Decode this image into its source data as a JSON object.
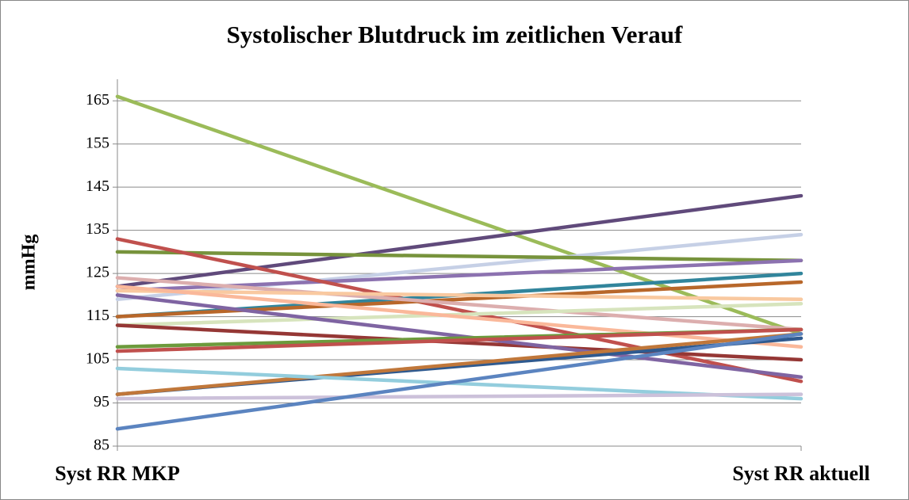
{
  "chart_data": {
    "type": "line",
    "title": "Systolischer Blutdruck im zeitlichen Verauf",
    "y_label": "mmHg",
    "categories": [
      "Syst RR MKP",
      "Syst RR aktuell"
    ],
    "ylim": [
      85,
      170
    ],
    "yticks": [
      85,
      95,
      105,
      115,
      125,
      135,
      145,
      155,
      165
    ],
    "grid": true,
    "series": [
      {
        "color": "#9bbb59",
        "values": [
          166,
          111
        ]
      },
      {
        "color": "#604a7b",
        "values": [
          122,
          143
        ]
      },
      {
        "color": "#c6d0e6",
        "values": [
          119,
          134
        ]
      },
      {
        "color": "#77933c",
        "values": [
          130,
          128
        ]
      },
      {
        "color": "#8c72b0",
        "values": [
          121,
          128
        ]
      },
      {
        "color": "#c0504d",
        "values": [
          133,
          100
        ]
      },
      {
        "color": "#31859c",
        "values": [
          115,
          125
        ]
      },
      {
        "color": "#b8672a",
        "values": [
          115,
          123
        ]
      },
      {
        "color": "#dcaeae",
        "values": [
          124,
          112
        ]
      },
      {
        "color": "#f9c9a0",
        "values": [
          121,
          119
        ]
      },
      {
        "color": "#d7e4bd",
        "values": [
          113,
          118
        ]
      },
      {
        "color": "#fab89a",
        "values": [
          122,
          108
        ]
      },
      {
        "color": "#953735",
        "values": [
          113,
          105
        ]
      },
      {
        "color": "#7f64a2",
        "values": [
          120,
          101
        ]
      },
      {
        "color": "#6c9a3c",
        "values": [
          108,
          112
        ]
      },
      {
        "color": "#c0504d",
        "values": [
          107,
          112
        ]
      },
      {
        "color": "#2f5a8f",
        "values": [
          97,
          110
        ]
      },
      {
        "color": "#c0773a",
        "values": [
          97,
          111
        ]
      },
      {
        "color": "#93cddd",
        "values": [
          103,
          96
        ]
      },
      {
        "color": "#ccc1da",
        "values": [
          96,
          97
        ]
      },
      {
        "color": "#5b84c0",
        "values": [
          89,
          111
        ]
      }
    ]
  }
}
